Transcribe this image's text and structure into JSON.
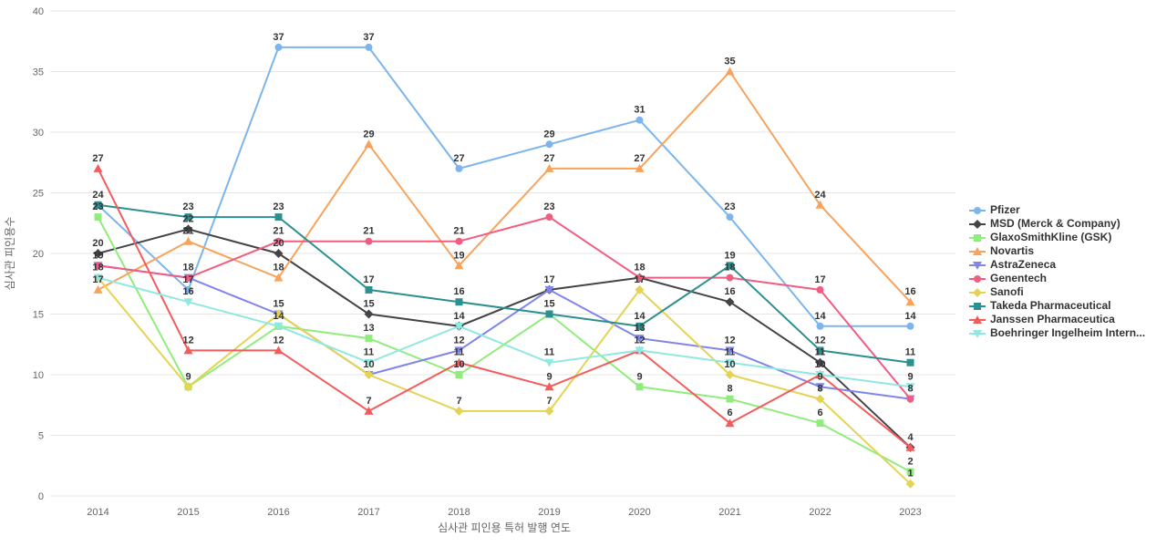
{
  "chart_data": {
    "type": "line",
    "title": "",
    "xlabel": "심사관 피인용 특허 발행 연도",
    "ylabel": "심사관 피인용수",
    "categories": [
      "2014",
      "2015",
      "2016",
      "2017",
      "2018",
      "2019",
      "2020",
      "2021",
      "2022",
      "2023"
    ],
    "ylim": [
      0,
      40
    ],
    "ytick_step": 5,
    "grid": true,
    "legend_position": "right",
    "data_labels": true,
    "colors": {
      "grid": "#e6e6e6",
      "tick_label": "#666666",
      "axis_title": "#666666",
      "data_label": "#333333",
      "legend_label": "#333333"
    },
    "series": [
      {
        "name": "Pfizer",
        "color": "#7cb5ec",
        "marker": "circle",
        "values": [
          24,
          17,
          37,
          37,
          27,
          29,
          31,
          23,
          14,
          14
        ]
      },
      {
        "name": "MSD (Merck & Company)",
        "color": "#434348",
        "marker": "diamond",
        "values": [
          20,
          22,
          20,
          15,
          14,
          17,
          18,
          16,
          11,
          4
        ]
      },
      {
        "name": "GlaxoSmithKline (GSK)",
        "color": "#90ed7d",
        "marker": "square",
        "values": [
          23,
          9,
          14,
          13,
          10,
          15,
          9,
          8,
          6,
          2
        ]
      },
      {
        "name": "Novartis",
        "color": "#f7a35c",
        "marker": "triangle",
        "values": [
          17,
          21,
          18,
          29,
          19,
          27,
          27,
          35,
          24,
          16
        ]
      },
      {
        "name": "AstraZeneca",
        "color": "#8085e9",
        "marker": "triangle-down",
        "values": [
          19,
          18,
          15,
          10,
          12,
          17,
          13,
          12,
          9,
          8
        ]
      },
      {
        "name": "Genentech",
        "color": "#f15c80",
        "marker": "circle",
        "values": [
          19,
          18,
          21,
          21,
          21,
          23,
          18,
          18,
          17,
          8
        ]
      },
      {
        "name": "Sanofi",
        "color": "#e4d354",
        "marker": "diamond",
        "values": [
          18,
          9,
          15,
          10,
          7,
          7,
          17,
          10,
          8,
          1
        ]
      },
      {
        "name": "Takeda Pharmaceutical",
        "color": "#2b908f",
        "marker": "square",
        "values": [
          24,
          23,
          23,
          17,
          16,
          15,
          14,
          19,
          12,
          11
        ]
      },
      {
        "name": "Janssen Pharmaceutica",
        "color": "#f45b5b",
        "marker": "triangle",
        "values": [
          27,
          12,
          12,
          7,
          11,
          9,
          12,
          6,
          10,
          4
        ]
      },
      {
        "name": "Boehringer Ingelheim Intern...",
        "color": "#91e8e1",
        "marker": "triangle-down",
        "values": [
          18,
          16,
          14,
          11,
          14,
          11,
          12,
          11,
          10,
          9
        ]
      }
    ]
  }
}
